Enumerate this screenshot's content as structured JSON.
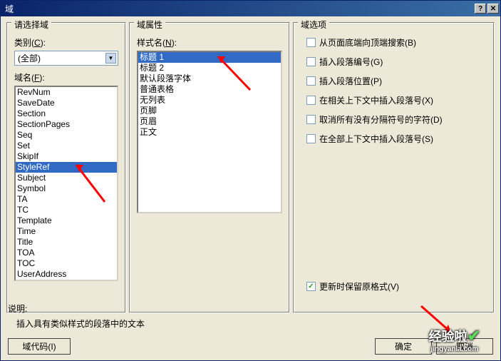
{
  "window": {
    "title": "域"
  },
  "left": {
    "header": "请选择域",
    "category_label": "类别",
    "category_key": "C",
    "category_value": "(全部)",
    "name_label": "域名",
    "name_key": "F",
    "items": [
      "RevNum",
      "SaveDate",
      "Section",
      "SectionPages",
      "Seq",
      "Set",
      "SkipIf",
      "StyleRef",
      "Subject",
      "Symbol",
      "TA",
      "TC",
      "Template",
      "Time",
      "Title",
      "TOA",
      "TOC",
      "UserAddress"
    ],
    "selected": "StyleRef"
  },
  "mid": {
    "header": "域属性",
    "style_label": "样式名",
    "style_key": "N",
    "items": [
      "标题 1",
      "标题 2",
      "默认段落字体",
      "普通表格",
      "无列表",
      "页脚",
      "页眉",
      "正文"
    ],
    "selected": "标题 1"
  },
  "right": {
    "header": "域选项",
    "options": [
      {
        "label": "从页面底端向顶端搜索",
        "key": "B",
        "checked": false
      },
      {
        "label": "插入段落编号",
        "key": "G",
        "checked": false
      },
      {
        "label": "插入段落位置",
        "key": "P",
        "checked": false
      },
      {
        "label": "在相关上下文中插入段落号",
        "key": "X",
        "checked": false
      },
      {
        "label": "取消所有没有分隔符号的字符",
        "key": "D",
        "checked": false
      },
      {
        "label": "在全部上下文中插入段落号",
        "key": "S",
        "checked": false
      }
    ],
    "preserve_label": "更新时保留原格式",
    "preserve_key": "V",
    "preserve_checked": true
  },
  "bottom": {
    "desc_label": "说明:",
    "desc_text": "插入具有类似样式的段落中的文本",
    "code_btn": "域代码",
    "code_key": "I",
    "ok_btn": "确定",
    "cancel_btn": "取消"
  },
  "watermark": {
    "line1": "经验啦",
    "line2": "jingyanla.com"
  }
}
